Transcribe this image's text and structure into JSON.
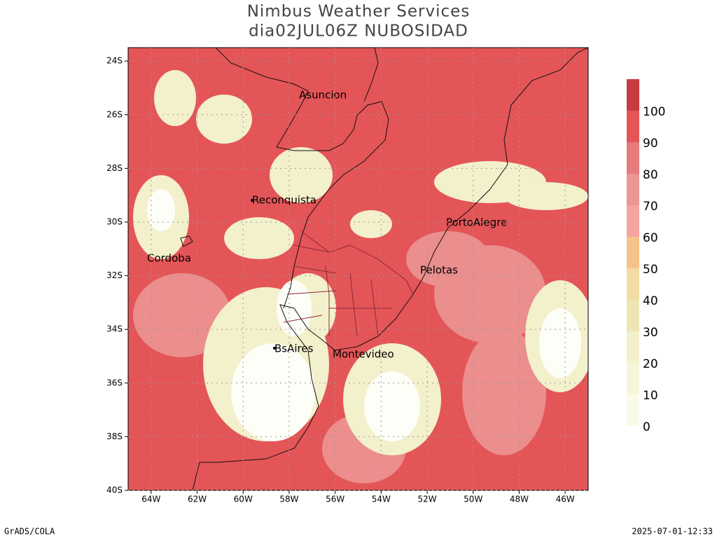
{
  "title": "Nimbus Weather Services",
  "subtitle": "dia02JUL06Z NUBOSIDAD",
  "map": {
    "xlim": [
      -65,
      -45
    ],
    "ylim": [
      -40,
      -23.5
    ],
    "xticks": [
      {
        "value": -64,
        "label": "64W"
      },
      {
        "value": -62,
        "label": "62W"
      },
      {
        "value": -60,
        "label": "60W"
      },
      {
        "value": -58,
        "label": "58W"
      },
      {
        "value": -56,
        "label": "56W"
      },
      {
        "value": -54,
        "label": "54W"
      },
      {
        "value": -52,
        "label": "52W"
      },
      {
        "value": -50,
        "label": "50W"
      },
      {
        "value": -48,
        "label": "48W"
      },
      {
        "value": -46,
        "label": "46W"
      }
    ],
    "yticks": [
      {
        "value": -24,
        "label": "24S"
      },
      {
        "value": -26,
        "label": "26S"
      },
      {
        "value": -28,
        "label": "28S"
      },
      {
        "value": -30,
        "label": "30S"
      },
      {
        "value": -32,
        "label": "32S"
      },
      {
        "value": -34,
        "label": "34S"
      },
      {
        "value": -36,
        "label": "36S"
      },
      {
        "value": -38,
        "label": "38S"
      },
      {
        "value": -40,
        "label": "40S"
      }
    ],
    "grid": true,
    "cities": [
      "Asuncion",
      "Reconquista",
      "Cordoba",
      "PortoAlegre",
      "Pelotas",
      "BsAires",
      "Montevideo"
    ]
  },
  "colorbar": {
    "levels": [
      0,
      10,
      20,
      30,
      40,
      50,
      60,
      70,
      80,
      90,
      100
    ],
    "colors": [
      "#fafae8",
      "#f5f5dc",
      "#f3f0cc",
      "#efe4b4",
      "#f1dca6",
      "#f4c28a",
      "#f5a4a1",
      "#eb9594",
      "#e77a7a",
      "#e45557",
      "#c83b3e"
    ]
  },
  "footer": {
    "left": "GrADS/COLA",
    "right": "2025-07-01-12:33"
  }
}
